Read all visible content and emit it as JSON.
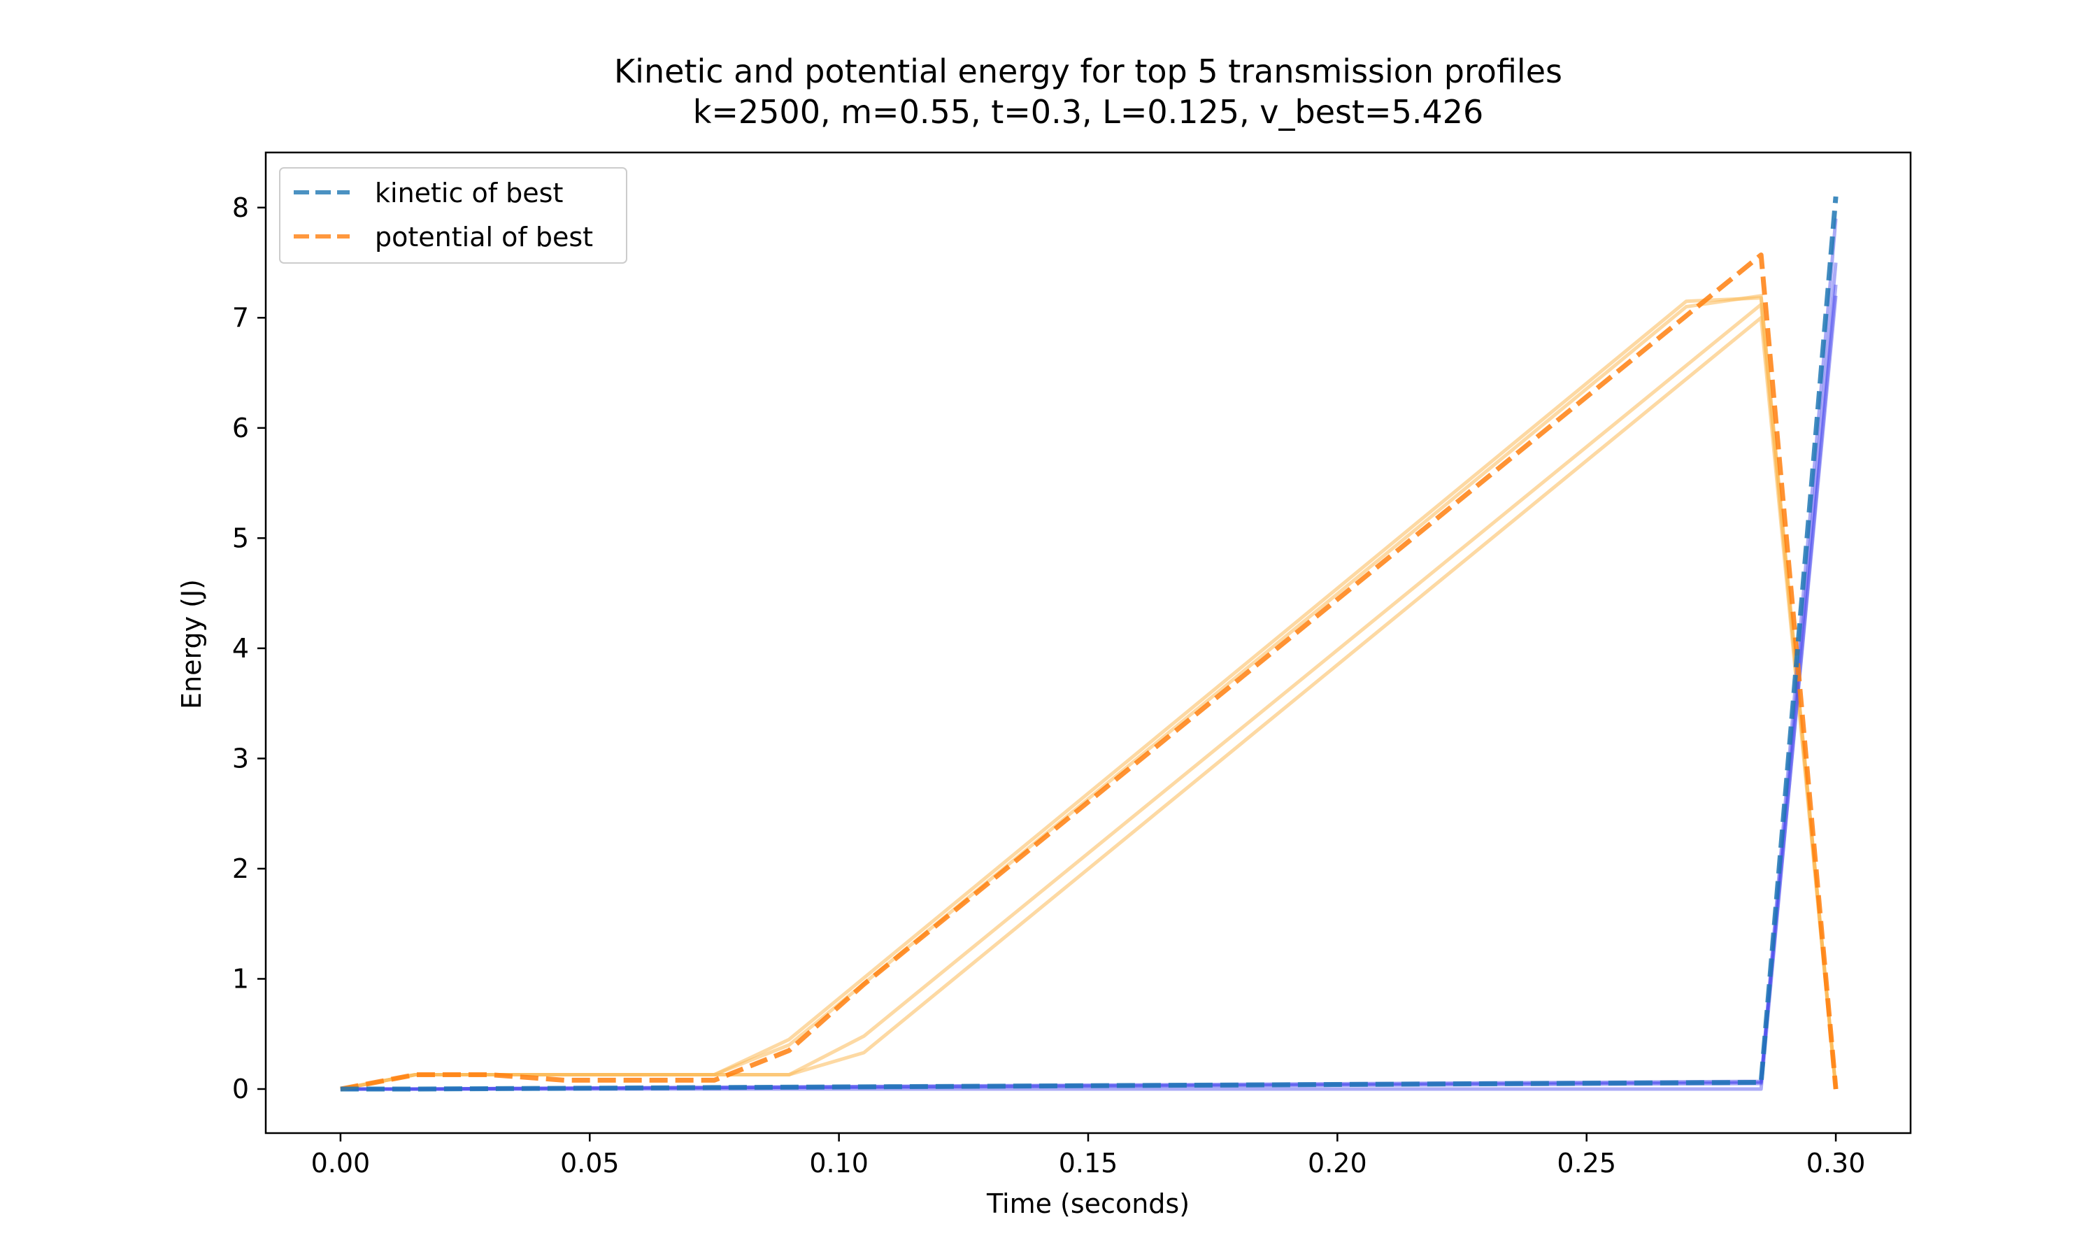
{
  "chart_data": {
    "type": "line",
    "title": "Kinetic and potential energy for top 5 transmission profiles",
    "subtitle": "k=2500, m=0.55, t=0.3, L=0.125, v_best=5.426",
    "xlabel": "Time (seconds)",
    "ylabel": "Energy (J)",
    "xlim": [
      -0.015,
      0.315
    ],
    "ylim": [
      -0.4,
      8.5
    ],
    "xticks": [
      0.0,
      0.05,
      0.1,
      0.15,
      0.2,
      0.25,
      0.3
    ],
    "xtick_labels": [
      "0.00",
      "0.05",
      "0.10",
      "0.15",
      "0.20",
      "0.25",
      "0.30"
    ],
    "yticks": [
      0,
      1,
      2,
      3,
      4,
      5,
      6,
      7,
      8
    ],
    "ytick_labels": [
      "0",
      "1",
      "2",
      "3",
      "4",
      "5",
      "6",
      "7",
      "8"
    ],
    "grid": false,
    "legend_position": "top-left",
    "colors": {
      "kinetic_best": "#1f77b4",
      "potential_best": "#ff7f0e",
      "kinetic_others": "#4444ee",
      "potential_others": "#fbb958"
    },
    "series": [
      {
        "name": "kinetic of best",
        "role": "kinetic_best",
        "style": "dashed",
        "x": [
          0.0,
          0.015,
          0.285,
          0.3
        ],
        "y": [
          0.0,
          0.0,
          0.06,
          8.1
        ]
      },
      {
        "name": "potential of best",
        "role": "potential_best",
        "style": "dashed",
        "x": [
          0.0,
          0.015,
          0.03,
          0.045,
          0.075,
          0.09,
          0.105,
          0.285,
          0.3
        ],
        "y": [
          0.0,
          0.13,
          0.13,
          0.08,
          0.08,
          0.35,
          0.95,
          7.57,
          0.0
        ]
      },
      {
        "role": "kinetic_others",
        "style": "solid",
        "x": [
          0.0,
          0.015,
          0.285,
          0.3
        ],
        "y": [
          0.0,
          0.0,
          0.07,
          7.5
        ]
      },
      {
        "role": "kinetic_others",
        "style": "solid",
        "x": [
          0.0,
          0.015,
          0.285,
          0.3
        ],
        "y": [
          0.0,
          0.0,
          0.06,
          7.2
        ]
      },
      {
        "role": "kinetic_others",
        "style": "solid",
        "x": [
          0.0,
          0.015,
          0.285,
          0.3
        ],
        "y": [
          0.0,
          0.0,
          0.0,
          7.3
        ]
      },
      {
        "role": "kinetic_others",
        "style": "solid",
        "x": [
          0.0,
          0.015,
          0.285,
          0.3
        ],
        "y": [
          0.0,
          0.0,
          0.05,
          7.9
        ]
      },
      {
        "role": "potential_others",
        "style": "solid",
        "x": [
          0.0,
          0.015,
          0.075,
          0.09,
          0.27,
          0.285,
          0.3
        ],
        "y": [
          0.0,
          0.13,
          0.13,
          0.45,
          7.15,
          7.18,
          0.0
        ]
      },
      {
        "role": "potential_others",
        "style": "solid",
        "x": [
          0.0,
          0.015,
          0.09,
          0.105,
          0.285,
          0.3
        ],
        "y": [
          0.0,
          0.13,
          0.13,
          0.48,
          7.12,
          0.0
        ]
      },
      {
        "role": "potential_others",
        "style": "solid",
        "x": [
          0.0,
          0.015,
          0.09,
          0.105,
          0.285,
          0.3
        ],
        "y": [
          0.0,
          0.13,
          0.13,
          0.33,
          7.0,
          0.0
        ]
      },
      {
        "role": "potential_others",
        "style": "solid",
        "x": [
          0.0,
          0.015,
          0.075,
          0.09,
          0.27,
          0.285,
          0.3
        ],
        "y": [
          0.0,
          0.13,
          0.13,
          0.4,
          7.1,
          7.2,
          0.0
        ]
      }
    ]
  }
}
